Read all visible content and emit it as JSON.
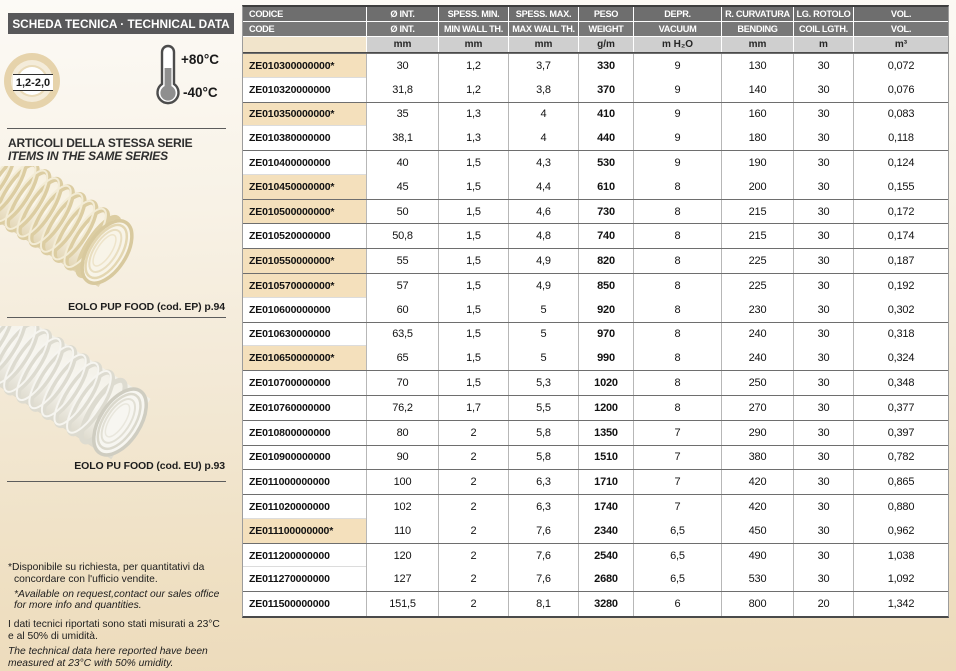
{
  "sidebar": {
    "title": "SCHEDA TECNICA · TECHNICAL DATA",
    "thickness_badge": "1,2-2,0",
    "temp_max": "+80°C",
    "temp_min": "-40°C",
    "series_heading_it": "ARTICOLI DELLA STESSA SERIE",
    "series_heading_en": "ITEMS IN THE SAME SERIES",
    "products": [
      {
        "caption": "EOLO PUP FOOD (cod. EP) p.94",
        "photo": "beige-spiral-hose"
      },
      {
        "caption": "EOLO PU FOOD (cod. EU) p.93",
        "photo": "white-spiral-hose"
      }
    ],
    "footnotes": {
      "availability_it": [
        "*Disponibile su richiesta, per quantitativi da",
        "concordare con l'ufficio vendite."
      ],
      "availability_en": [
        "*Available on request,contact our sales office",
        "for more info and quantities."
      ],
      "conditions_it": [
        "I dati tecnici riportati sono stati misurati a 23°C",
        "e al 50% di umidità."
      ],
      "conditions_en": [
        "The technical data here reported have been",
        "measured at 23°C with 50% umidity."
      ]
    }
  },
  "table": {
    "header_row1": [
      "CODICE",
      "Ø INT.",
      "SPESS. MIN.",
      "SPESS. MAX.",
      "PESO",
      "DEPR.",
      "R. CURVATURA",
      "LG. ROTOLO",
      "VOL."
    ],
    "header_row2": [
      "CODE",
      "Ø INT.",
      "MIN WALL TH.",
      "MAX WALL TH.",
      "WEIGHT",
      "VACUUM",
      "BENDING",
      "COIL LGTH.",
      "VOL."
    ],
    "units_row": [
      "",
      "mm",
      "mm",
      "mm",
      "g/m",
      "m H₂O",
      "mm",
      "m",
      "m³"
    ],
    "rows": [
      {
        "code": "ZE010300000000*",
        "starred": true,
        "group_start": true,
        "int_diameter": "30",
        "min_wall": "1,2",
        "max_wall": "3,7",
        "weight": "330",
        "vacuum": "9",
        "bending": "130",
        "coil": "30",
        "vol": "0,072"
      },
      {
        "code": "ZE010320000000",
        "starred": false,
        "group_start": false,
        "int_diameter": "31,8",
        "min_wall": "1,2",
        "max_wall": "3,8",
        "weight": "370",
        "vacuum": "9",
        "bending": "140",
        "coil": "30",
        "vol": "0,076"
      },
      {
        "code": "ZE010350000000*",
        "starred": true,
        "group_start": true,
        "int_diameter": "35",
        "min_wall": "1,3",
        "max_wall": "4",
        "weight": "410",
        "vacuum": "9",
        "bending": "160",
        "coil": "30",
        "vol": "0,083"
      },
      {
        "code": "ZE010380000000",
        "starred": false,
        "group_start": false,
        "int_diameter": "38,1",
        "min_wall": "1,3",
        "max_wall": "4",
        "weight": "440",
        "vacuum": "9",
        "bending": "180",
        "coil": "30",
        "vol": "0,118"
      },
      {
        "code": "ZE010400000000",
        "starred": false,
        "group_start": true,
        "int_diameter": "40",
        "min_wall": "1,5",
        "max_wall": "4,3",
        "weight": "530",
        "vacuum": "9",
        "bending": "190",
        "coil": "30",
        "vol": "0,124"
      },
      {
        "code": "ZE010450000000*",
        "starred": true,
        "group_start": false,
        "int_diameter": "45",
        "min_wall": "1,5",
        "max_wall": "4,4",
        "weight": "610",
        "vacuum": "8",
        "bending": "200",
        "coil": "30",
        "vol": "0,155"
      },
      {
        "code": "ZE010500000000*",
        "starred": true,
        "group_start": true,
        "int_diameter": "50",
        "min_wall": "1,5",
        "max_wall": "4,6",
        "weight": "730",
        "vacuum": "8",
        "bending": "215",
        "coil": "30",
        "vol": "0,172"
      },
      {
        "code": "ZE010520000000",
        "starred": false,
        "group_start": true,
        "int_diameter": "50,8",
        "min_wall": "1,5",
        "max_wall": "4,8",
        "weight": "740",
        "vacuum": "8",
        "bending": "215",
        "coil": "30",
        "vol": "0,174"
      },
      {
        "code": "ZE010550000000*",
        "starred": true,
        "group_start": true,
        "int_diameter": "55",
        "min_wall": "1,5",
        "max_wall": "4,9",
        "weight": "820",
        "vacuum": "8",
        "bending": "225",
        "coil": "30",
        "vol": "0,187"
      },
      {
        "code": "ZE010570000000*",
        "starred": true,
        "group_start": true,
        "int_diameter": "57",
        "min_wall": "1,5",
        "max_wall": "4,9",
        "weight": "850",
        "vacuum": "8",
        "bending": "225",
        "coil": "30",
        "vol": "0,192"
      },
      {
        "code": "ZE010600000000",
        "starred": false,
        "group_start": false,
        "int_diameter": "60",
        "min_wall": "1,5",
        "max_wall": "5",
        "weight": "920",
        "vacuum": "8",
        "bending": "230",
        "coil": "30",
        "vol": "0,302"
      },
      {
        "code": "ZE010630000000",
        "starred": false,
        "group_start": true,
        "int_diameter": "63,5",
        "min_wall": "1,5",
        "max_wall": "5",
        "weight": "970",
        "vacuum": "8",
        "bending": "240",
        "coil": "30",
        "vol": "0,318"
      },
      {
        "code": "ZE010650000000*",
        "starred": true,
        "group_start": false,
        "int_diameter": "65",
        "min_wall": "1,5",
        "max_wall": "5",
        "weight": "990",
        "vacuum": "8",
        "bending": "240",
        "coil": "30",
        "vol": "0,324"
      },
      {
        "code": "ZE010700000000",
        "starred": false,
        "group_start": true,
        "int_diameter": "70",
        "min_wall": "1,5",
        "max_wall": "5,3",
        "weight": "1020",
        "vacuum": "8",
        "bending": "250",
        "coil": "30",
        "vol": "0,348"
      },
      {
        "code": "ZE010760000000",
        "starred": false,
        "group_start": true,
        "int_diameter": "76,2",
        "min_wall": "1,7",
        "max_wall": "5,5",
        "weight": "1200",
        "vacuum": "8",
        "bending": "270",
        "coil": "30",
        "vol": "0,377"
      },
      {
        "code": "ZE010800000000",
        "starred": false,
        "group_start": true,
        "int_diameter": "80",
        "min_wall": "2",
        "max_wall": "5,8",
        "weight": "1350",
        "vacuum": "7",
        "bending": "290",
        "coil": "30",
        "vol": "0,397"
      },
      {
        "code": "ZE010900000000",
        "starred": false,
        "group_start": true,
        "int_diameter": "90",
        "min_wall": "2",
        "max_wall": "5,8",
        "weight": "1510",
        "vacuum": "7",
        "bending": "380",
        "coil": "30",
        "vol": "0,782"
      },
      {
        "code": "ZE011000000000",
        "starred": false,
        "group_start": true,
        "int_diameter": "100",
        "min_wall": "2",
        "max_wall": "6,3",
        "weight": "1710",
        "vacuum": "7",
        "bending": "420",
        "coil": "30",
        "vol": "0,865"
      },
      {
        "code": "ZE011020000000",
        "starred": false,
        "group_start": true,
        "int_diameter": "102",
        "min_wall": "2",
        "max_wall": "6,3",
        "weight": "1740",
        "vacuum": "7",
        "bending": "420",
        "coil": "30",
        "vol": "0,880"
      },
      {
        "code": "ZE011100000000*",
        "starred": true,
        "group_start": false,
        "int_diameter": "110",
        "min_wall": "2",
        "max_wall": "7,6",
        "weight": "2340",
        "vacuum": "6,5",
        "bending": "450",
        "coil": "30",
        "vol": "0,962"
      },
      {
        "code": "ZE011200000000",
        "starred": false,
        "group_start": true,
        "int_diameter": "120",
        "min_wall": "2",
        "max_wall": "7,6",
        "weight": "2540",
        "vacuum": "6,5",
        "bending": "490",
        "coil": "30",
        "vol": "1,038"
      },
      {
        "code": "ZE011270000000",
        "starred": false,
        "group_start": false,
        "int_diameter": "127",
        "min_wall": "2",
        "max_wall": "7,6",
        "weight": "2680",
        "vacuum": "6,5",
        "bending": "530",
        "coil": "30",
        "vol": "1,092"
      },
      {
        "code": "ZE011500000000",
        "starred": false,
        "group_start": true,
        "int_diameter": "151,5",
        "min_wall": "2",
        "max_wall": "8,1",
        "weight": "3280",
        "vacuum": "6",
        "bending": "800",
        "coil": "20",
        "vol": "1,342"
      }
    ]
  },
  "colors": {
    "highlight_beige": "#f4e0bc",
    "header_gray_dark": "#6e6e6e",
    "header_gray_mid": "#787878",
    "units_gray": "#cfcfcf",
    "title_bar_gray": "#58585a",
    "page_tan_bottom": "#ecdaba",
    "page_cream_top": "#fcfaf6"
  }
}
